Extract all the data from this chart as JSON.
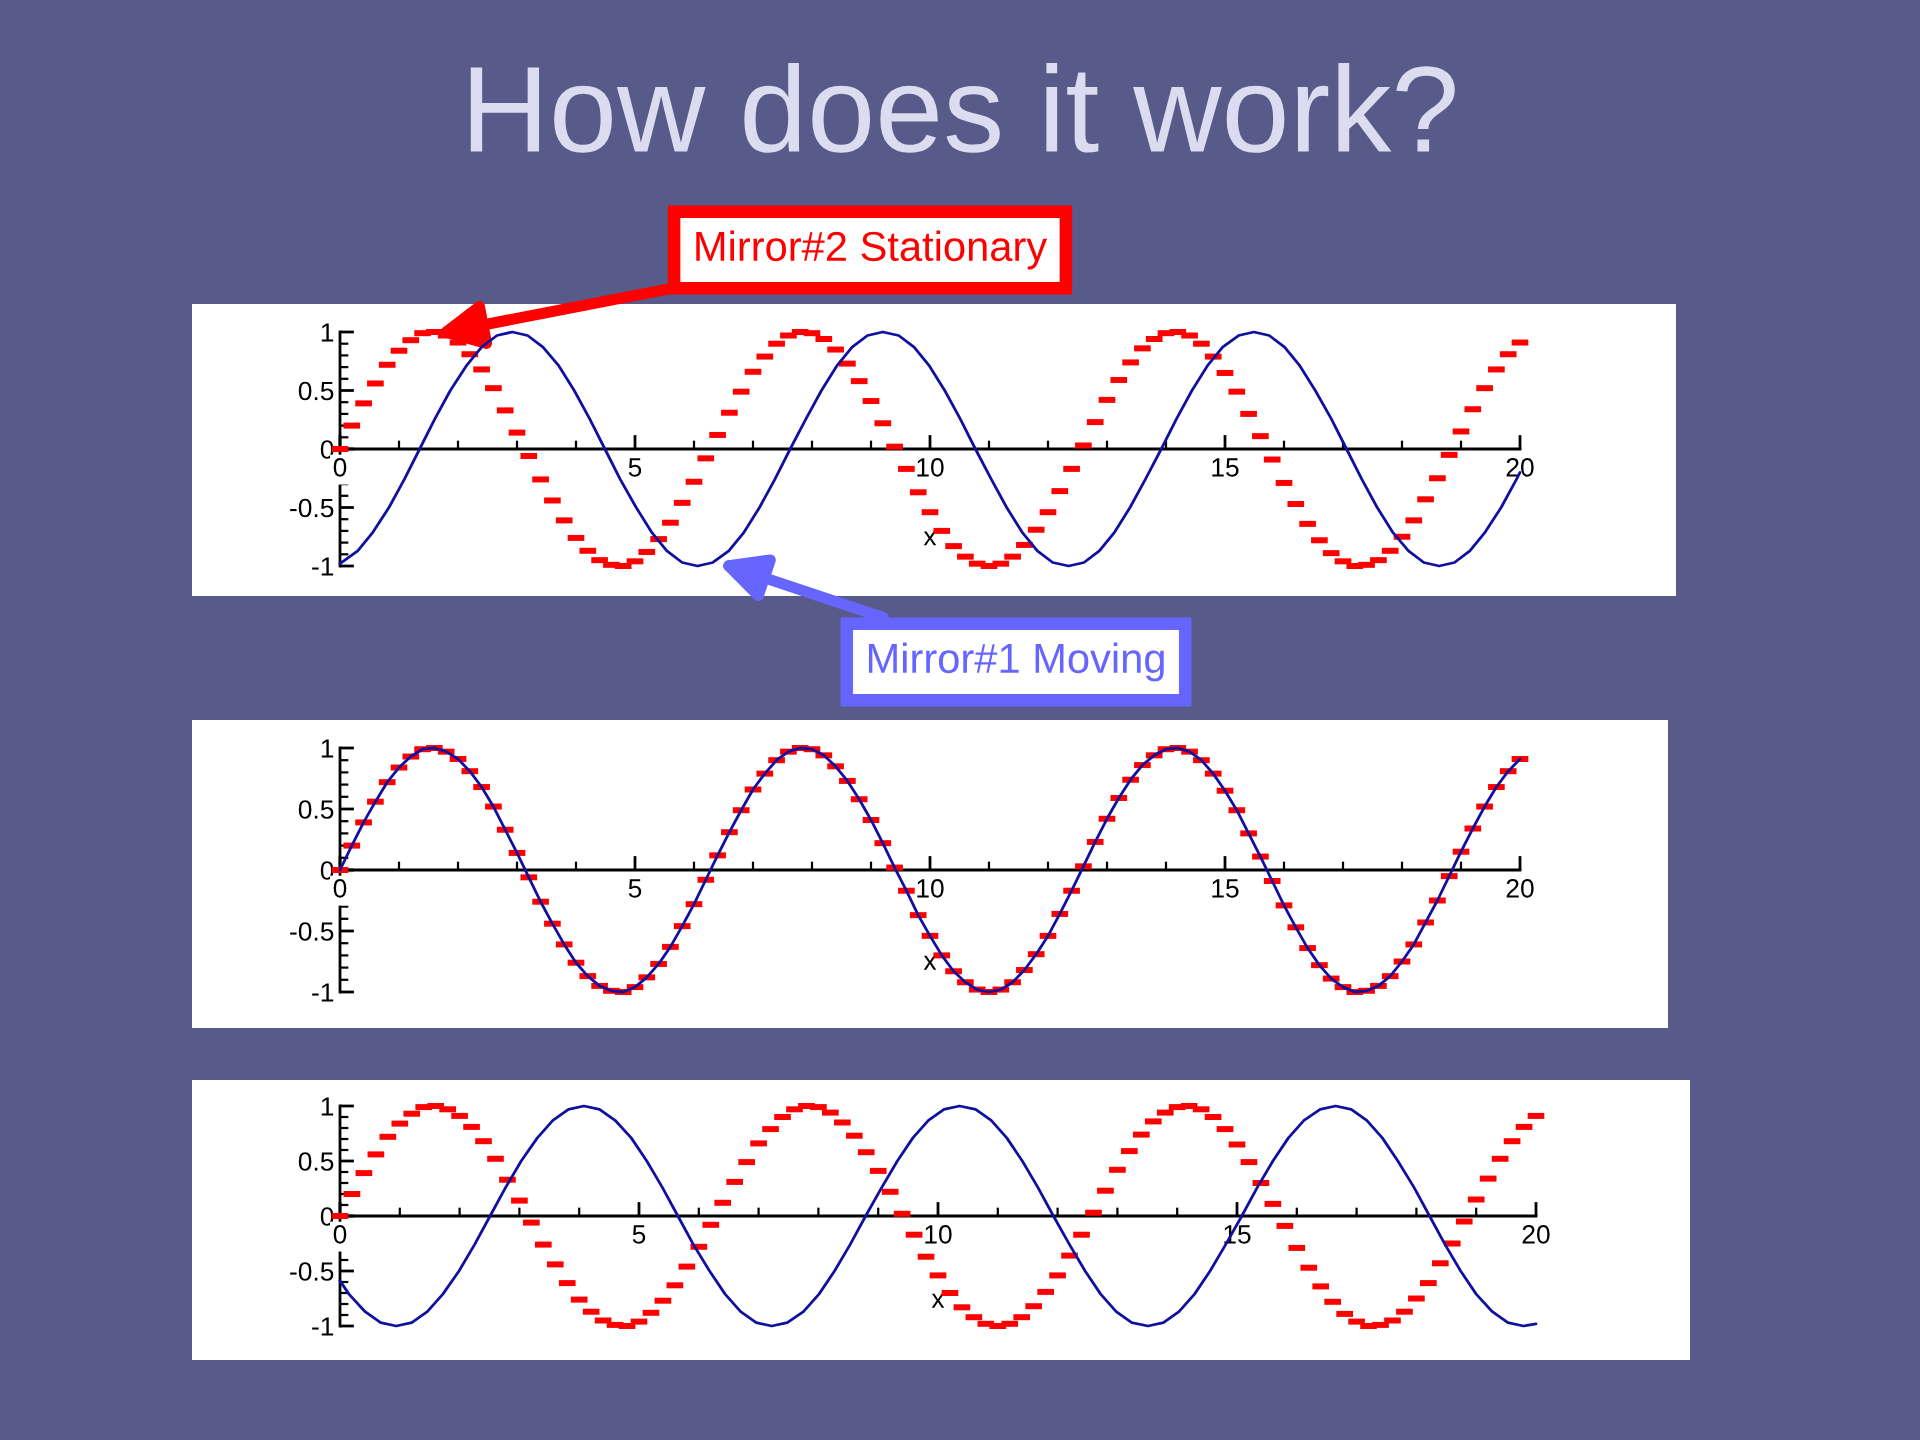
{
  "chart_data": [
    {
      "type": "line",
      "title": "How does it work?",
      "xlabel": "x",
      "xlim": [
        0,
        20
      ],
      "xticks": [
        0,
        5,
        10,
        15,
        20
      ],
      "ylim": [
        -1,
        1
      ],
      "yticks": [
        -1,
        -0.5,
        0,
        0.5,
        1
      ],
      "x": [
        0,
        0.2,
        0.4,
        0.6,
        0.8,
        1,
        1.2,
        1.4,
        1.6,
        1.8,
        2,
        2.2,
        2.4,
        2.6,
        2.8,
        3,
        3.2,
        3.4,
        3.6,
        3.8,
        4,
        4.2,
        4.4,
        4.6,
        4.8,
        5,
        5.2,
        5.4,
        5.6,
        5.8,
        6,
        6.2,
        6.4,
        6.6,
        6.8,
        7,
        7.2,
        7.4,
        7.6,
        7.8,
        8,
        8.2,
        8.4,
        8.6,
        8.8,
        9,
        9.2,
        9.4,
        9.6,
        9.8,
        10,
        10.2,
        10.4,
        10.6,
        10.8,
        11,
        11.2,
        11.4,
        11.6,
        11.8,
        12,
        12.2,
        12.4,
        12.6,
        12.8,
        13,
        13.2,
        13.4,
        13.6,
        13.8,
        14,
        14.2,
        14.4,
        14.6,
        14.8,
        15,
        15.2,
        15.4,
        15.6,
        15.8,
        16,
        16.2,
        16.4,
        16.6,
        16.8,
        17,
        17.2,
        17.4,
        17.6,
        17.8,
        18,
        18.2,
        18.4,
        18.6,
        18.8,
        19,
        19.2,
        19.4,
        19.6,
        19.8,
        20
      ],
      "series": [
        {
          "type": "scatter",
          "color": "#ff0000",
          "values": [
            0,
            0.2,
            0.39,
            0.56,
            0.72,
            0.84,
            0.93,
            0.99,
            1,
            0.97,
            0.91,
            0.81,
            0.68,
            0.52,
            0.33,
            0.14,
            -0.06,
            -0.26,
            -0.44,
            -0.61,
            -0.76,
            -0.87,
            -0.95,
            -0.99,
            -1,
            -0.96,
            -0.88,
            -0.77,
            -0.63,
            -0.46,
            -0.28,
            -0.08,
            0.12,
            0.31,
            0.49,
            0.66,
            0.79,
            0.9,
            0.97,
            1,
            0.99,
            0.94,
            0.85,
            0.73,
            0.58,
            0.41,
            0.22,
            0.02,
            -0.17,
            -0.37,
            -0.54,
            -0.7,
            -0.83,
            -0.92,
            -0.98,
            -1,
            -0.98,
            -0.92,
            -0.82,
            -0.69,
            -0.54,
            -0.36,
            -0.17,
            0.03,
            0.23,
            0.42,
            0.59,
            0.74,
            0.86,
            0.94,
            0.99,
            1,
            0.97,
            0.9,
            0.79,
            0.65,
            0.49,
            0.3,
            0.11,
            -0.09,
            -0.29,
            -0.47,
            -0.64,
            -0.78,
            -0.89,
            -0.96,
            -1,
            -0.99,
            -0.95,
            -0.87,
            -0.75,
            -0.61,
            -0.43,
            -0.25,
            -0.05,
            0.15,
            0.34,
            0.52,
            0.68,
            0.81,
            0.91
          ]
        },
        {
          "color": "#1010a0",
          "x": [
            0,
            0.3,
            0.56,
            0.83,
            1.09,
            1.35,
            1.61,
            1.87,
            2.14,
            2.4,
            2.66,
            2.92,
            3.18,
            3.44,
            3.71,
            3.97,
            4.23,
            4.49,
            4.75,
            5.02,
            5.28,
            5.54,
            5.8,
            6.06,
            6.32,
            6.59,
            6.85,
            7.11,
            7.37,
            7.63,
            7.9,
            8.16,
            8.42,
            8.68,
            8.94,
            9.2,
            9.47,
            9.73,
            9.99,
            10.25,
            10.51,
            10.77,
            11.04,
            11.3,
            11.56,
            11.82,
            12.08,
            12.35,
            12.61,
            12.87,
            13.13,
            13.39,
            13.65,
            13.92,
            14.18,
            14.44,
            14.7,
            14.96,
            15.23,
            15.49,
            15.75,
            16.01,
            16.27,
            16.53,
            16.8,
            17.06,
            17.32,
            17.58,
            17.84,
            18.11,
            18.37,
            18.63,
            18.89,
            19.15,
            19.41,
            19.68,
            19.94,
            20
          ],
          "values": [
            -0.98,
            -0.87,
            -0.71,
            -0.5,
            -0.26,
            0,
            0.26,
            0.5,
            0.71,
            0.87,
            0.97,
            1,
            0.97,
            0.87,
            0.71,
            0.5,
            0.26,
            0,
            -0.26,
            -0.5,
            -0.71,
            -0.87,
            -0.97,
            -1,
            -0.97,
            -0.87,
            -0.71,
            -0.5,
            -0.26,
            0,
            0.26,
            0.5,
            0.71,
            0.87,
            0.97,
            1,
            0.97,
            0.87,
            0.71,
            0.5,
            0.26,
            0,
            -0.26,
            -0.5,
            -0.71,
            -0.87,
            -0.97,
            -1,
            -0.97,
            -0.87,
            -0.71,
            -0.5,
            -0.26,
            0,
            0.26,
            0.5,
            0.71,
            0.87,
            0.97,
            1,
            0.97,
            0.87,
            0.71,
            0.5,
            0.26,
            0,
            -0.26,
            -0.5,
            -0.71,
            -0.87,
            -0.97,
            -1,
            -0.97,
            -0.87,
            -0.71,
            -0.5,
            -0.26,
            -0.2
          ]
        }
      ],
      "annotations": [
        {
          "text": "Mirror#2 Stationary",
          "x": 1.5,
          "y": 0.97
        },
        {
          "text": "Mirror#1 Moving",
          "x": 6.3,
          "y": -0.95
        }
      ]
    },
    {
      "type": "line",
      "xlabel": "x",
      "xlim": [
        0,
        20
      ],
      "xticks": [
        0,
        5,
        10,
        15,
        20
      ],
      "ylim": [
        -1,
        1
      ],
      "yticks": [
        -1,
        -0.5,
        0,
        0.5,
        1
      ],
      "x": [
        0,
        0.2,
        0.4,
        0.6,
        0.8,
        1,
        1.2,
        1.4,
        1.6,
        1.8,
        2,
        2.2,
        2.4,
        2.6,
        2.8,
        3,
        3.2,
        3.4,
        3.6,
        3.8,
        4,
        4.2,
        4.4,
        4.6,
        4.8,
        5,
        5.2,
        5.4,
        5.6,
        5.8,
        6,
        6.2,
        6.4,
        6.6,
        6.8,
        7,
        7.2,
        7.4,
        7.6,
        7.8,
        8,
        8.2,
        8.4,
        8.6,
        8.8,
        9,
        9.2,
        9.4,
        9.6,
        9.8,
        10,
        10.2,
        10.4,
        10.6,
        10.8,
        11,
        11.2,
        11.4,
        11.6,
        11.8,
        12,
        12.2,
        12.4,
        12.6,
        12.8,
        13,
        13.2,
        13.4,
        13.6,
        13.8,
        14,
        14.2,
        14.4,
        14.6,
        14.8,
        15,
        15.2,
        15.4,
        15.6,
        15.8,
        16,
        16.2,
        16.4,
        16.6,
        16.8,
        17,
        17.2,
        17.4,
        17.6,
        17.8,
        18,
        18.2,
        18.4,
        18.6,
        18.8,
        19,
        19.2,
        19.4,
        19.6,
        19.8,
        20
      ],
      "series": [
        {
          "type": "scatter",
          "color": "#ff0000",
          "values": [
            0,
            0.2,
            0.39,
            0.56,
            0.72,
            0.84,
            0.93,
            0.99,
            1,
            0.97,
            0.91,
            0.81,
            0.68,
            0.52,
            0.33,
            0.14,
            -0.06,
            -0.26,
            -0.44,
            -0.61,
            -0.76,
            -0.87,
            -0.95,
            -0.99,
            -1,
            -0.96,
            -0.88,
            -0.77,
            -0.63,
            -0.46,
            -0.28,
            -0.08,
            0.12,
            0.31,
            0.49,
            0.66,
            0.79,
            0.9,
            0.97,
            1,
            0.99,
            0.94,
            0.85,
            0.73,
            0.58,
            0.41,
            0.22,
            0.02,
            -0.17,
            -0.37,
            -0.54,
            -0.7,
            -0.83,
            -0.92,
            -0.98,
            -1,
            -0.98,
            -0.92,
            -0.82,
            -0.69,
            -0.54,
            -0.36,
            -0.17,
            0.03,
            0.23,
            0.42,
            0.59,
            0.74,
            0.86,
            0.94,
            0.99,
            1,
            0.97,
            0.9,
            0.79,
            0.65,
            0.49,
            0.3,
            0.11,
            -0.09,
            -0.29,
            -0.47,
            -0.64,
            -0.78,
            -0.89,
            -0.96,
            -1,
            -0.99,
            -0.95,
            -0.87,
            -0.75,
            -0.61,
            -0.43,
            -0.25,
            -0.05,
            0.15,
            0.34,
            0.52,
            0.68,
            0.81,
            0.91
          ]
        },
        {
          "color": "#1010a0",
          "values": [
            0,
            0.2,
            0.39,
            0.56,
            0.72,
            0.84,
            0.93,
            0.99,
            1,
            0.97,
            0.91,
            0.81,
            0.68,
            0.52,
            0.33,
            0.14,
            -0.06,
            -0.26,
            -0.44,
            -0.61,
            -0.76,
            -0.87,
            -0.95,
            -0.99,
            -1,
            -0.96,
            -0.88,
            -0.77,
            -0.63,
            -0.46,
            -0.28,
            -0.08,
            0.12,
            0.31,
            0.49,
            0.66,
            0.79,
            0.9,
            0.97,
            1,
            0.99,
            0.94,
            0.85,
            0.73,
            0.58,
            0.41,
            0.22,
            0.02,
            -0.17,
            -0.37,
            -0.54,
            -0.7,
            -0.83,
            -0.92,
            -0.98,
            -1,
            -0.98,
            -0.92,
            -0.82,
            -0.69,
            -0.54,
            -0.36,
            -0.17,
            0.03,
            0.23,
            0.42,
            0.59,
            0.74,
            0.86,
            0.94,
            0.99,
            1,
            0.97,
            0.9,
            0.79,
            0.65,
            0.49,
            0.3,
            0.11,
            -0.09,
            -0.29,
            -0.47,
            -0.64,
            -0.78,
            -0.89,
            -0.96,
            -1,
            -0.99,
            -0.95,
            -0.87,
            -0.75,
            -0.61,
            -0.43,
            -0.25,
            -0.05,
            0.15,
            0.34,
            0.52,
            0.68,
            0.81,
            0.91
          ]
        }
      ]
    },
    {
      "type": "line",
      "xlabel": "x",
      "xlim": [
        0,
        20
      ],
      "xticks": [
        0,
        5,
        10,
        15,
        20
      ],
      "ylim": [
        -1,
        1
      ],
      "yticks": [
        -1,
        -0.5,
        0,
        0.5,
        1
      ],
      "x": [
        0,
        0.2,
        0.4,
        0.6,
        0.8,
        1,
        1.2,
        1.4,
        1.6,
        1.8,
        2,
        2.2,
        2.4,
        2.6,
        2.8,
        3,
        3.2,
        3.4,
        3.6,
        3.8,
        4,
        4.2,
        4.4,
        4.6,
        4.8,
        5,
        5.2,
        5.4,
        5.6,
        5.8,
        6,
        6.2,
        6.4,
        6.6,
        6.8,
        7,
        7.2,
        7.4,
        7.6,
        7.8,
        8,
        8.2,
        8.4,
        8.6,
        8.8,
        9,
        9.2,
        9.4,
        9.6,
        9.8,
        10,
        10.2,
        10.4,
        10.6,
        10.8,
        11,
        11.2,
        11.4,
        11.6,
        11.8,
        12,
        12.2,
        12.4,
        12.6,
        12.8,
        13,
        13.2,
        13.4,
        13.6,
        13.8,
        14,
        14.2,
        14.4,
        14.6,
        14.8,
        15,
        15.2,
        15.4,
        15.6,
        15.8,
        16,
        16.2,
        16.4,
        16.6,
        16.8,
        17,
        17.2,
        17.4,
        17.6,
        17.8,
        18,
        18.2,
        18.4,
        18.6,
        18.8,
        19,
        19.2,
        19.4,
        19.6,
        19.8,
        20
      ],
      "series": [
        {
          "type": "scatter",
          "color": "#ff0000",
          "values": [
            0,
            0.2,
            0.39,
            0.56,
            0.72,
            0.84,
            0.93,
            0.99,
            1,
            0.97,
            0.91,
            0.81,
            0.68,
            0.52,
            0.33,
            0.14,
            -0.06,
            -0.26,
            -0.44,
            -0.61,
            -0.76,
            -0.87,
            -0.95,
            -0.99,
            -1,
            -0.96,
            -0.88,
            -0.77,
            -0.63,
            -0.46,
            -0.28,
            -0.08,
            0.12,
            0.31,
            0.49,
            0.66,
            0.79,
            0.9,
            0.97,
            1,
            0.99,
            0.94,
            0.85,
            0.73,
            0.58,
            0.41,
            0.22,
            0.02,
            -0.17,
            -0.37,
            -0.54,
            -0.7,
            -0.83,
            -0.92,
            -0.98,
            -1,
            -0.98,
            -0.92,
            -0.82,
            -0.69,
            -0.54,
            -0.36,
            -0.17,
            0.03,
            0.23,
            0.42,
            0.59,
            0.74,
            0.86,
            0.94,
            0.99,
            1,
            0.97,
            0.9,
            0.79,
            0.65,
            0.49,
            0.3,
            0.11,
            -0.09,
            -0.29,
            -0.47,
            -0.64,
            -0.78,
            -0.89,
            -0.96,
            -1,
            -0.99,
            -0.95,
            -0.87,
            -0.75,
            -0.61,
            -0.43,
            -0.25,
            -0.05,
            0.15,
            0.34,
            0.52,
            0.68,
            0.81,
            0.91
          ]
        },
        {
          "color": "#1010a0",
          "x": [
            0,
            0.15,
            0.42,
            0.68,
            0.94,
            1.2,
            1.46,
            1.72,
            1.99,
            2.25,
            2.51,
            2.77,
            3.03,
            3.3,
            3.56,
            3.82,
            4.08,
            4.34,
            4.6,
            4.87,
            5.13,
            5.39,
            5.65,
            5.91,
            6.18,
            6.44,
            6.7,
            6.96,
            7.22,
            7.48,
            7.75,
            8.01,
            8.27,
            8.53,
            8.79,
            9.06,
            9.32,
            9.58,
            9.84,
            10.1,
            10.36,
            10.63,
            10.89,
            11.15,
            11.41,
            11.67,
            11.93,
            12.2,
            12.46,
            12.72,
            12.98,
            13.24,
            13.51,
            13.77,
            14.03,
            14.29,
            14.55,
            14.81,
            15.08,
            15.34,
            15.6,
            15.86,
            16.12,
            16.39,
            16.65,
            16.91,
            17.17,
            17.43,
            17.69,
            17.96,
            18.22,
            18.48,
            18.74,
            19,
            19.27,
            19.53,
            19.79,
            20
          ],
          "values": [
            -0.59,
            -0.71,
            -0.87,
            -0.97,
            -1,
            -0.97,
            -0.87,
            -0.71,
            -0.5,
            -0.26,
            0,
            0.26,
            0.5,
            0.71,
            0.87,
            0.97,
            1,
            0.97,
            0.87,
            0.71,
            0.5,
            0.26,
            0,
            -0.26,
            -0.5,
            -0.71,
            -0.87,
            -0.97,
            -1,
            -0.97,
            -0.87,
            -0.71,
            -0.5,
            -0.26,
            0,
            0.26,
            0.5,
            0.71,
            0.87,
            0.97,
            1,
            0.97,
            0.87,
            0.71,
            0.5,
            0.26,
            0,
            -0.26,
            -0.5,
            -0.71,
            -0.87,
            -0.97,
            -1,
            -0.97,
            -0.87,
            -0.71,
            -0.5,
            -0.26,
            0,
            0.26,
            0.5,
            0.71,
            0.87,
            0.97,
            1,
            0.97,
            0.87,
            0.71,
            0.5,
            0.26,
            0,
            -0.26,
            -0.5,
            -0.71,
            -0.87,
            -0.97,
            -1,
            -0.98
          ]
        }
      ]
    }
  ]
}
